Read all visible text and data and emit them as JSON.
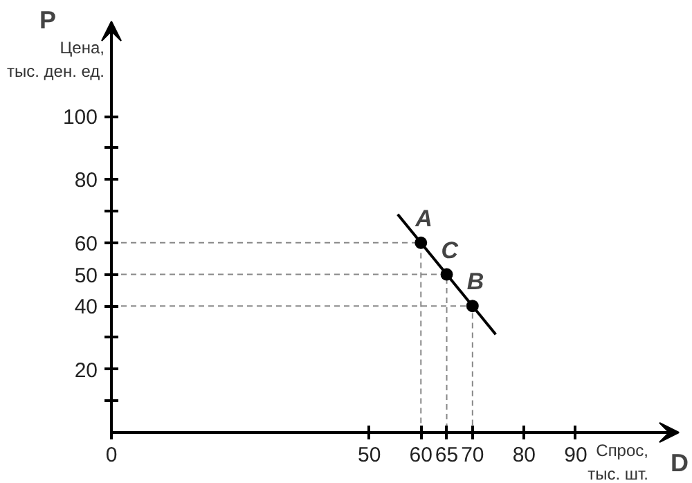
{
  "chart_data": {
    "type": "line",
    "xlabel": "Спрос,\nтыс. шт.",
    "ylabel": "Цена,\nтыс. ден. ед.",
    "xlim": [
      0,
      110
    ],
    "ylim": [
      0,
      130
    ],
    "xticks": [
      0,
      50,
      60,
      65,
      70,
      80,
      90
    ],
    "yticks": [
      {
        "value": 10,
        "label": null
      },
      20,
      {
        "value": 30,
        "label": null
      },
      40,
      50,
      60,
      {
        "value": 70,
        "label": null
      },
      80,
      {
        "value": 90,
        "label": null
      },
      100
    ],
    "grid": false,
    "series": [
      {
        "color": "#000000",
        "x": [
          55.5,
          74.5
        ],
        "values": [
          69,
          31
        ],
        "line_style": "solid"
      },
      {
        "color": "#888888",
        "x": [
          0,
          60,
          60
        ],
        "values": [
          60,
          60,
          0
        ],
        "line_style": "dashed"
      },
      {
        "color": "#888888",
        "x": [
          0,
          65,
          65
        ],
        "values": [
          50,
          50,
          0
        ],
        "line_style": "dashed"
      },
      {
        "color": "#888888",
        "x": [
          0,
          70,
          70
        ],
        "values": [
          40,
          40,
          0
        ],
        "line_style": "dashed"
      },
      {
        "type": "scatter",
        "color": "#000000",
        "x": [
          60,
          65,
          70
        ],
        "values": [
          60,
          50,
          40
        ],
        "marker": "circle"
      }
    ],
    "annotations": [
      "P",
      "D",
      {
        "text": "A",
        "x": 60,
        "y": 60
      },
      {
        "text": "C",
        "x": 65,
        "y": 50
      },
      {
        "text": "B",
        "x": 70,
        "y": 40
      }
    ]
  }
}
